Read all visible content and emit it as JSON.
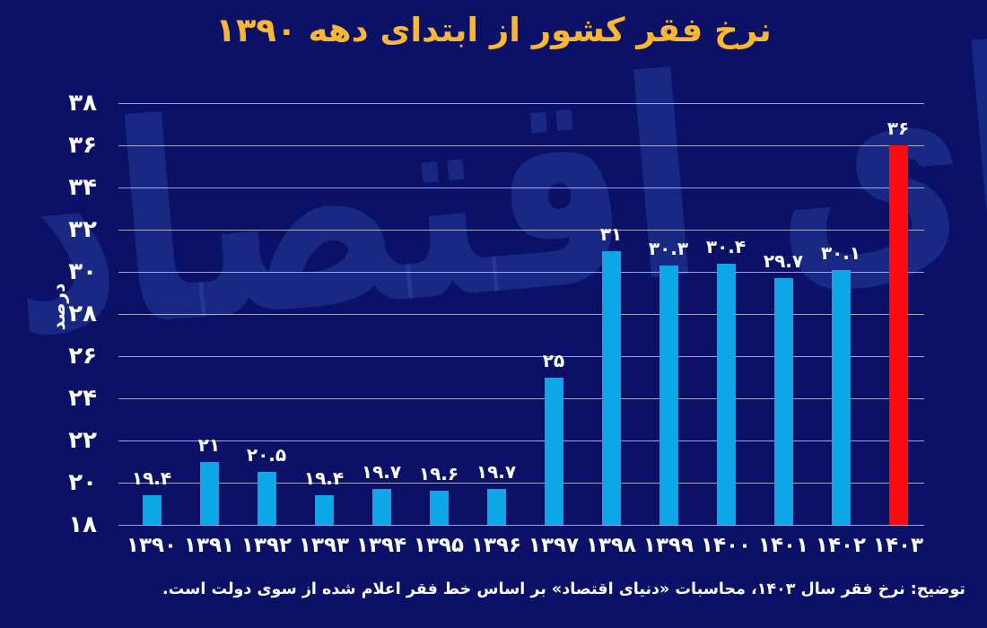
{
  "page": {
    "background": "#0a1167"
  },
  "title": {
    "text": "نرخ فقر کشور از ابتدای دهه ۱۳۹۰",
    "color": "#f9b733"
  },
  "watermark": {
    "text": "دنیای اقتصاد"
  },
  "footnote": {
    "text": "توضیح: نرخ فقر سال ۱۴۰۳، محاسبات «دنیای اقتصاد» بر اساس خط فقر اعلام شده از سوی دولت است."
  },
  "chart_data": {
    "type": "bar",
    "title": "نرخ فقر کشور از ابتدای دهه ۱۳۹۰",
    "xlabel": "",
    "ylabel": "درصد",
    "ylim": [
      18,
      38
    ],
    "ytick_step": 2,
    "grid": true,
    "legend": "none",
    "bar_color": "#0ba7e8",
    "highlight_color": "#fa0d10",
    "highlight_index": 13,
    "yticks": [
      {
        "value": 18,
        "label": "۱۸"
      },
      {
        "value": 20,
        "label": "۲۰"
      },
      {
        "value": 22,
        "label": "۲۲"
      },
      {
        "value": 24,
        "label": "۲۴"
      },
      {
        "value": 26,
        "label": "۲۶"
      },
      {
        "value": 28,
        "label": "۲۸"
      },
      {
        "value": 30,
        "label": "۳۰"
      },
      {
        "value": 32,
        "label": "۳۲"
      },
      {
        "value": 34,
        "label": "۳۴"
      },
      {
        "value": 36,
        "label": "۳۶"
      },
      {
        "value": 38,
        "label": "۳۸"
      }
    ],
    "categories": [
      "1390",
      "1391",
      "1392",
      "1393",
      "1394",
      "1395",
      "1396",
      "1397",
      "1398",
      "1399",
      "1400",
      "1401",
      "1402",
      "1403"
    ],
    "values": [
      19.4,
      21,
      20.5,
      19.4,
      19.7,
      19.6,
      19.7,
      25,
      31,
      30.3,
      30.4,
      29.7,
      30.1,
      36
    ],
    "bars": [
      {
        "year_fa": "۱۳۹۰",
        "value": 19.4,
        "label": "۱۹.۴",
        "highlight": false
      },
      {
        "year_fa": "۱۳۹۱",
        "value": 21,
        "label": "۲۱",
        "highlight": false
      },
      {
        "year_fa": "۱۳۹۲",
        "value": 20.5,
        "label": "۲۰.۵",
        "highlight": false
      },
      {
        "year_fa": "۱۳۹۳",
        "value": 19.4,
        "label": "۱۹.۴",
        "highlight": false
      },
      {
        "year_fa": "۱۳۹۴",
        "value": 19.7,
        "label": "۱۹.۷",
        "highlight": false
      },
      {
        "year_fa": "۱۳۹۵",
        "value": 19.6,
        "label": "۱۹.۶",
        "highlight": false
      },
      {
        "year_fa": "۱۳۹۶",
        "value": 19.7,
        "label": "۱۹.۷",
        "highlight": false
      },
      {
        "year_fa": "۱۳۹۷",
        "value": 25,
        "label": "۲۵",
        "highlight": false
      },
      {
        "year_fa": "۱۳۹۸",
        "value": 31,
        "label": "۳۱",
        "highlight": false
      },
      {
        "year_fa": "۱۳۹۹",
        "value": 30.3,
        "label": "۳۰.۳",
        "highlight": false
      },
      {
        "year_fa": "۱۴۰۰",
        "value": 30.4,
        "label": "۳۰.۴",
        "highlight": false
      },
      {
        "year_fa": "۱۴۰۱",
        "value": 29.7,
        "label": "۲۹.۷",
        "highlight": false
      },
      {
        "year_fa": "۱۴۰۲",
        "value": 30.1,
        "label": "۳۰.۱",
        "highlight": false
      },
      {
        "year_fa": "۱۴۰۳",
        "value": 36,
        "label": "۳۶",
        "highlight": true
      }
    ]
  }
}
